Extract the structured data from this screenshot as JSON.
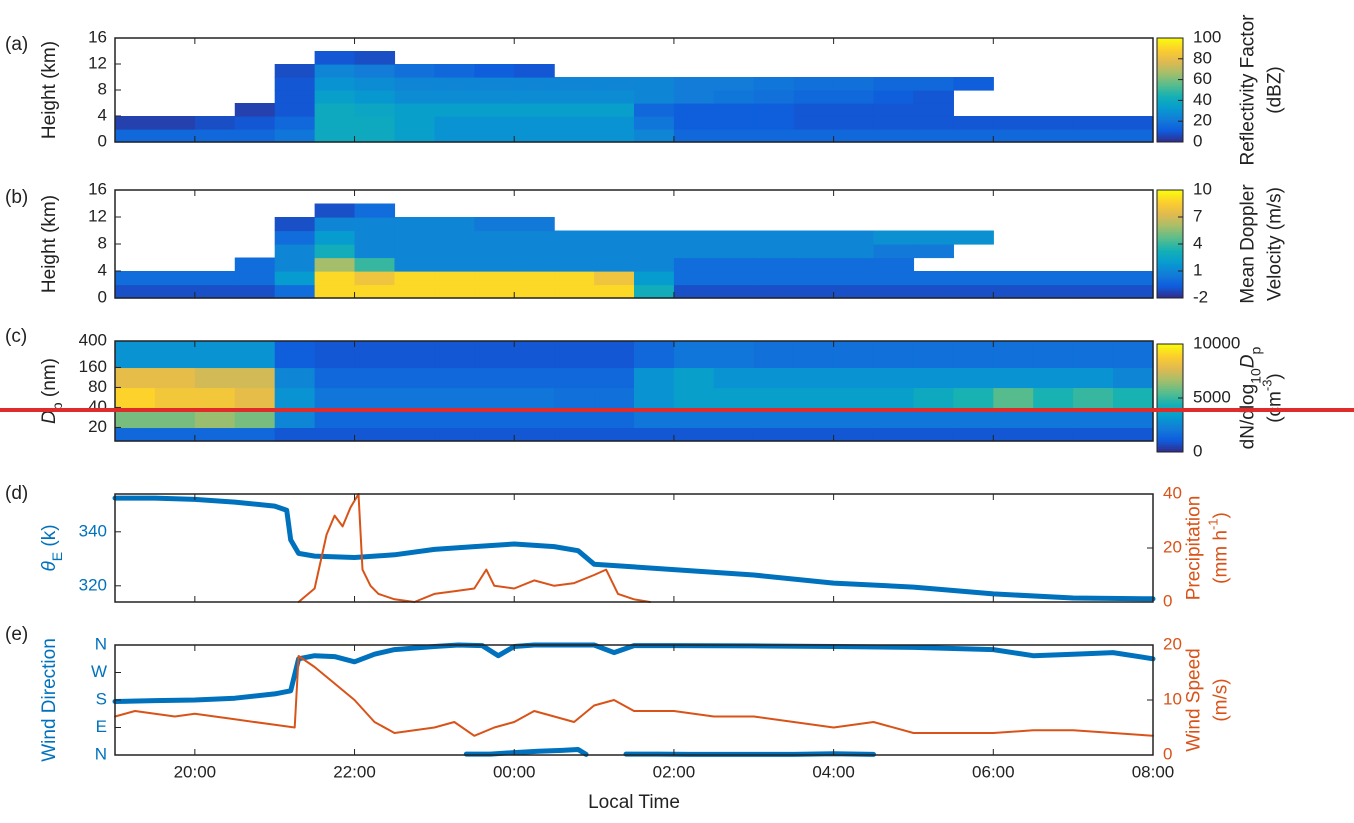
{
  "chart_data": [
    {
      "type": "heatmap",
      "panel_label": "(a)",
      "ylabel": "Height (km)",
      "xlim": [
        19,
        32
      ],
      "xticks": [
        20,
        22,
        24,
        26,
        28,
        30,
        32
      ],
      "ylim": [
        0,
        16
      ],
      "yticks": [
        0,
        4,
        8,
        12,
        16
      ],
      "x_bins": [
        19,
        19.5,
        20,
        20.5,
        21,
        21.5,
        22,
        22.5,
        23,
        23.5,
        24,
        24.5,
        25,
        25.5,
        26,
        26.5,
        27,
        27.5,
        28,
        28.5,
        29,
        29.5,
        30,
        30.5,
        31,
        31.5,
        32
      ],
      "y_bins": [
        0,
        2,
        4,
        6,
        8,
        10,
        12,
        14
      ],
      "z": [
        [
          15,
          15,
          15,
          15,
          20,
          40,
          40,
          35,
          30,
          30,
          30,
          30,
          30,
          25,
          15,
          15,
          15,
          15,
          15,
          15,
          15,
          15,
          15,
          15,
          15,
          15
        ],
        [
          5,
          5,
          8,
          10,
          15,
          40,
          40,
          35,
          30,
          30,
          30,
          30,
          30,
          20,
          12,
          12,
          12,
          10,
          10,
          10,
          10,
          10,
          10,
          10,
          10,
          10
        ],
        [
          null,
          null,
          null,
          5,
          10,
          40,
          38,
          35,
          35,
          35,
          35,
          35,
          35,
          15,
          12,
          12,
          12,
          10,
          10,
          10,
          10,
          null,
          null,
          null,
          null,
          null
        ],
        [
          null,
          null,
          null,
          null,
          10,
          35,
          32,
          28,
          28,
          28,
          28,
          28,
          28,
          25,
          22,
          20,
          18,
          15,
          15,
          12,
          10,
          null,
          null,
          null,
          null,
          null
        ],
        [
          null,
          null,
          null,
          null,
          10,
          30,
          28,
          25,
          25,
          25,
          25,
          25,
          25,
          25,
          22,
          22,
          20,
          18,
          18,
          15,
          15,
          12,
          null,
          null,
          null,
          null
        ],
        [
          null,
          null,
          null,
          null,
          8,
          25,
          22,
          18,
          15,
          12,
          10,
          null,
          null,
          null,
          null,
          null,
          null,
          null,
          null,
          null,
          null,
          null,
          null,
          null,
          null,
          null
        ],
        [
          null,
          null,
          null,
          null,
          null,
          10,
          8,
          null,
          null,
          null,
          null,
          null,
          null,
          null,
          null,
          null,
          null,
          null,
          null,
          null,
          null,
          null,
          null,
          null,
          null,
          null
        ]
      ],
      "colorbar": {
        "lim": [
          0,
          100
        ],
        "ticks": [
          0,
          20,
          40,
          60,
          80,
          100
        ],
        "label": [
          "Reflectivity Factor",
          "(dBZ)"
        ]
      }
    },
    {
      "type": "heatmap",
      "panel_label": "(b)",
      "ylabel": "Height (km)",
      "xlim": [
        19,
        32
      ],
      "xticks": [
        20,
        22,
        24,
        26,
        28,
        30,
        32
      ],
      "ylim": [
        0,
        16
      ],
      "yticks": [
        0,
        4,
        8,
        12,
        16
      ],
      "x_bins": [
        19,
        19.5,
        20,
        20.5,
        21,
        21.5,
        22,
        22.5,
        23,
        23.5,
        24,
        24.5,
        25,
        25.5,
        26,
        26.5,
        27,
        27.5,
        28,
        28.5,
        29,
        29.5,
        30,
        30.5,
        31,
        31.5,
        32
      ],
      "y_bins": [
        0,
        2,
        4,
        6,
        8,
        10,
        12,
        14
      ],
      "z": [
        [
          -1,
          -1,
          -1,
          -1,
          0,
          9,
          9,
          9,
          9,
          9,
          9,
          9,
          9,
          3,
          -1,
          -1,
          -1,
          -1,
          -1,
          -1,
          -1,
          -1,
          -1,
          -1,
          -1,
          -1
        ],
        [
          0,
          0,
          0,
          0,
          2,
          9,
          8,
          9,
          9,
          9,
          9,
          9,
          8,
          2,
          0,
          0,
          0,
          0,
          0,
          0,
          0,
          0,
          0,
          0,
          0,
          0
        ],
        [
          null,
          null,
          null,
          0,
          1,
          6,
          4,
          1,
          1,
          1,
          1,
          1,
          1,
          1,
          0,
          0,
          0,
          0,
          0,
          0,
          null,
          null,
          null,
          null,
          null,
          null
        ],
        [
          null,
          null,
          null,
          null,
          1,
          3,
          1,
          1,
          1,
          1,
          1,
          1,
          1,
          1,
          1,
          1,
          1,
          1,
          1,
          0.5,
          0.5,
          null,
          null,
          null,
          null,
          null
        ],
        [
          null,
          null,
          null,
          null,
          0,
          2,
          1,
          1,
          1,
          1,
          1,
          1,
          1,
          1,
          1,
          1,
          1,
          1,
          1,
          1.5,
          1.5,
          1.5,
          null,
          null,
          null,
          null
        ],
        [
          null,
          null,
          null,
          null,
          -1,
          1,
          1,
          1,
          1,
          0.5,
          0.5,
          null,
          null,
          null,
          null,
          null,
          null,
          null,
          null,
          null,
          null,
          null,
          null,
          null,
          null,
          null
        ],
        [
          null,
          null,
          null,
          null,
          null,
          -1,
          0,
          null,
          null,
          null,
          null,
          null,
          null,
          null,
          null,
          null,
          null,
          null,
          null,
          null,
          null,
          null,
          null,
          null,
          null,
          null
        ]
      ],
      "colorbar": {
        "lim": [
          -2,
          10
        ],
        "ticks": [
          -2,
          1,
          4,
          7,
          10
        ],
        "label": [
          "Mean Doppler",
          "Velocity (m/s)"
        ]
      }
    },
    {
      "type": "heatmap",
      "panel_label": "(c)",
      "ylabel": [
        [
          {
            "text": "D",
            "style": "italic"
          },
          {
            "text": "p",
            "style": "sub"
          },
          " (nm)"
        ]
      ],
      "xlim": [
        19,
        32
      ],
      "xticks": [
        20,
        22,
        24,
        26,
        28,
        30,
        32
      ],
      "ylim": [
        12.5,
        400
      ],
      "yticks": [
        20,
        40,
        80,
        160,
        400
      ],
      "ylog": true,
      "x_bins": [
        19,
        19.5,
        20,
        20.5,
        21,
        21.5,
        22,
        22.5,
        23,
        23.5,
        24,
        24.5,
        25,
        25.5,
        26,
        26.5,
        27,
        27.5,
        28,
        28.5,
        29,
        29.5,
        30,
        30.5,
        31,
        31.5,
        32
      ],
      "y_bins": [
        12.5,
        20,
        40,
        80,
        160,
        400
      ],
      "z": [
        [
          1500,
          1500,
          1500,
          1500,
          1000,
          1000,
          1000,
          1000,
          1000,
          1000,
          1000,
          1000,
          1000,
          1000,
          1000,
          1000,
          1000,
          1000,
          1000,
          1000,
          1000,
          1000,
          1000,
          1000,
          1000,
          1000
        ],
        [
          6000,
          6000,
          6500,
          6000,
          2500,
          1500,
          1500,
          1500,
          1500,
          1500,
          1500,
          1500,
          1500,
          2000,
          2000,
          2000,
          2000,
          2000,
          2000,
          2000,
          2000,
          2000,
          2000,
          2000,
          2000,
          2000
        ],
        [
          9000,
          8500,
          8500,
          8000,
          3000,
          2000,
          2000,
          2000,
          2000,
          2000,
          2000,
          1800,
          1800,
          3000,
          3500,
          3500,
          3500,
          3500,
          3500,
          3500,
          4000,
          4500,
          5500,
          4500,
          5000,
          4500
        ],
        [
          8000,
          8000,
          7500,
          7500,
          2500,
          1500,
          1500,
          1500,
          1500,
          1500,
          1500,
          1500,
          1500,
          3000,
          3500,
          3000,
          3000,
          3000,
          3000,
          3000,
          3000,
          3000,
          3000,
          3000,
          3000,
          2500
        ],
        [
          3000,
          3000,
          3000,
          3000,
          1200,
          1000,
          1000,
          1000,
          1000,
          1000,
          1000,
          1000,
          1000,
          1500,
          2000,
          2000,
          1800,
          1800,
          1800,
          1800,
          1800,
          1800,
          1800,
          1800,
          1800,
          1800
        ]
      ],
      "colorbar": {
        "lim": [
          0,
          10000
        ],
        "ticks": [
          0,
          5000,
          10000
        ],
        "label": [
          [
            "dN/dlog",
            {
              "text": "10",
              "style": "sub"
            },
            {
              "text": "D",
              "style": "italic"
            },
            {
              "text": "p",
              "style": "sub"
            }
          ],
          [
            "(cm",
            {
              "text": "-3",
              "style": "sup"
            },
            ")"
          ]
        ]
      }
    },
    {
      "type": "line",
      "panel_label": "(d)",
      "ylabel": [
        [
          {
            "text": "θ",
            "style": "italic"
          },
          {
            "text": "E",
            "style": "sub"
          },
          " (k)"
        ]
      ],
      "y2label": [
        "Precipitation",
        [
          "(mm h",
          {
            "text": "-1",
            "style": "sup"
          },
          ")"
        ]
      ],
      "xlim": [
        19,
        32
      ],
      "xticks": [
        20,
        22,
        24,
        26,
        28,
        30,
        32
      ],
      "ylim": [
        314,
        354
      ],
      "yticks": [
        320,
        340
      ],
      "y2lim": [
        0,
        40
      ],
      "y2ticks": [
        0,
        20,
        40
      ],
      "series": [
        {
          "color": "#0072bd",
          "mode": "markers",
          "x": [
            19,
            19.5,
            20,
            20.5,
            21,
            21.15,
            21.2,
            21.3,
            21.5,
            22,
            22.5,
            23,
            23.5,
            24,
            24.5,
            24.8,
            25,
            25.5,
            26,
            27,
            28,
            29,
            30,
            31,
            32
          ],
          "values": [
            352.5,
            352.5,
            352,
            351,
            349.5,
            348,
            337,
            332,
            331,
            330.5,
            331.5,
            333.5,
            334.5,
            335.5,
            334.5,
            333,
            328,
            327,
            326,
            324,
            321,
            319.5,
            317,
            315.5,
            315.2
          ]
        },
        {
          "color": "#d95319",
          "mode": "line",
          "axis": "y2",
          "x": [
            21.3,
            21.5,
            21.65,
            21.75,
            21.85,
            21.95,
            22.05,
            22.1,
            22.2,
            22.3,
            22.5,
            22.75,
            23,
            23.25,
            23.5,
            23.65,
            23.75,
            24,
            24.25,
            24.5,
            24.75,
            25,
            25.15,
            25.3,
            25.5,
            25.7
          ],
          "values": [
            0,
            5,
            25,
            32,
            28,
            35,
            40,
            12,
            6,
            3,
            1,
            0,
            3,
            4,
            5,
            12,
            6,
            5,
            8,
            6,
            7,
            10,
            12,
            3,
            1,
            0
          ]
        }
      ]
    },
    {
      "type": "line",
      "panel_label": "(e)",
      "ylabel": "Wind Direction",
      "y2label": [
        "Wind Speed",
        "(m/s)"
      ],
      "xlabel": "Local Time",
      "xlim": [
        19,
        32
      ],
      "xticks": [
        {
          "value": 20,
          "label": "20:00"
        },
        {
          "value": 22,
          "label": "22:00"
        },
        {
          "value": 24,
          "label": "00:00"
        },
        {
          "value": 26,
          "label": "02:00"
        },
        {
          "value": 28,
          "label": "04:00"
        },
        {
          "value": 30,
          "label": "06:00"
        },
        {
          "value": 32,
          "label": "08:00"
        }
      ],
      "ylim": [
        0,
        360
      ],
      "yticks": [
        {
          "value": 0,
          "label": "N"
        },
        {
          "value": 90,
          "label": "E"
        },
        {
          "value": 180,
          "label": "S"
        },
        {
          "value": 270,
          "label": "W"
        },
        {
          "value": 360,
          "label": "N"
        }
      ],
      "y2lim": [
        0,
        20
      ],
      "y2ticks": [
        0,
        10,
        20
      ],
      "series": [
        {
          "color": "#0072bd",
          "mode": "markers",
          "x": [
            19,
            19.5,
            20,
            20.5,
            21,
            21.2,
            21.3,
            21.5,
            21.75,
            22,
            22.25,
            22.5,
            23,
            23.3,
            23.6,
            23.8,
            24,
            24.25,
            24.5,
            25,
            25.25,
            25.5,
            26,
            27,
            28,
            29,
            30,
            30.5,
            31,
            31.5,
            32
          ],
          "values": [
            175,
            178,
            180,
            186,
            200,
            210,
            315,
            325,
            322,
            305,
            330,
            345,
            355,
            360,
            358,
            325,
            355,
            360,
            360,
            360,
            335,
            358,
            358,
            357,
            355,
            352,
            345,
            325,
            330,
            335,
            315
          ]
        },
        {
          "color": "#0072bd",
          "mode": "markers",
          "x": [
            23.4,
            23.7,
            24,
            24.3,
            24.6,
            24.8,
            24.9,
            25,
            25.4,
            25.8,
            26.2,
            26.6,
            27,
            27.5,
            28,
            28.5
          ],
          "values": [
            3,
            3,
            8,
            12,
            15,
            18,
            2,
            null,
            3,
            3,
            2,
            2,
            2,
            2,
            4,
            2
          ]
        },
        {
          "color": "#d95319",
          "mode": "line",
          "axis": "y2",
          "x": [
            19,
            19.25,
            19.5,
            19.75,
            20,
            20.5,
            21,
            21.25,
            21.3,
            21.5,
            21.75,
            22,
            22.25,
            22.5,
            22.75,
            23,
            23.25,
            23.5,
            23.75,
            24,
            24.25,
            24.5,
            24.75,
            25,
            25.25,
            25.5,
            26,
            26.5,
            27,
            27.5,
            28,
            28.5,
            29,
            29.5,
            30,
            30.5,
            31,
            31.5,
            32
          ],
          "values": [
            7,
            8,
            7.5,
            7,
            7.5,
            6.5,
            5.5,
            5,
            18,
            16,
            13,
            10,
            6,
            4,
            4.5,
            5,
            6,
            3.5,
            5,
            6,
            8,
            7,
            6,
            9,
            10,
            8,
            8,
            7,
            7,
            6,
            5,
            6,
            4,
            4,
            4,
            4.5,
            4.5,
            4,
            3.5
          ]
        }
      ]
    }
  ]
}
